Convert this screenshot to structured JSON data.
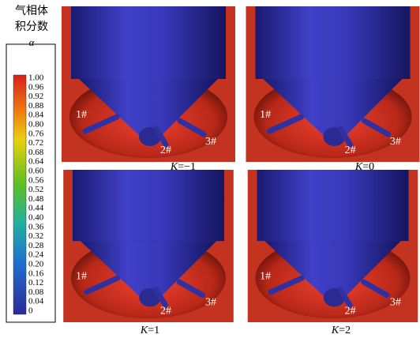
{
  "legend": {
    "title_lines": [
      "气相体",
      "积分数"
    ],
    "symbol": "α",
    "ticks": [
      "1.00",
      "0.96",
      "0.92",
      "0.88",
      "0.84",
      "0.80",
      "0.76",
      "0.72",
      "0.68",
      "0.64",
      "0.60",
      "0.56",
      "0.52",
      "0.48",
      "0.44",
      "0.40",
      "0.36",
      "0.32",
      "0.28",
      "0.24",
      "0.20",
      "0.16",
      "0.12",
      "0.08",
      "0.04",
      "0"
    ]
  },
  "panels": [
    {
      "symbol": "K",
      "value": "=−1",
      "labels": [
        "1#",
        "2#",
        "3#"
      ]
    },
    {
      "symbol": "K",
      "value": "=0",
      "labels": [
        "1#",
        "2#",
        "3#"
      ]
    },
    {
      "symbol": "K",
      "value": "=1",
      "labels": [
        "1#",
        "2#",
        "3#"
      ]
    },
    {
      "symbol": "K",
      "value": "=2",
      "labels": [
        "1#",
        "2#",
        "3#"
      ]
    }
  ]
}
